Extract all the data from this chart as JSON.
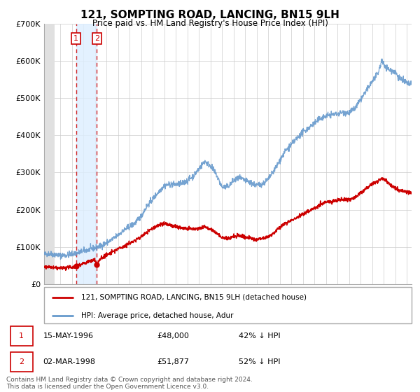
{
  "title": "121, SOMPTING ROAD, LANCING, BN15 9LH",
  "subtitle": "Price paid vs. HM Land Registry's House Price Index (HPI)",
  "legend_line1": "121, SOMPTING ROAD, LANCING, BN15 9LH (detached house)",
  "legend_line2": "HPI: Average price, detached house, Adur",
  "footer": "Contains HM Land Registry data © Crown copyright and database right 2024.\nThis data is licensed under the Open Government Licence v3.0.",
  "transactions": [
    {
      "label": "1",
      "date": "1996-05-15",
      "price": 48000,
      "note": "15-MAY-1996",
      "amount": "£48,000",
      "pct": "42% ↓ HPI"
    },
    {
      "label": "2",
      "date": "1998-03-02",
      "price": 51877,
      "note": "02-MAR-1998",
      "amount": "£51,877",
      "pct": "52% ↓ HPI"
    }
  ],
  "price_color": "#cc0000",
  "hpi_color": "#6699cc",
  "vline_color": "#cc0000",
  "highlight_bg": "#ddeeff",
  "ylim": [
    0,
    700000
  ],
  "yticks": [
    0,
    100000,
    200000,
    300000,
    400000,
    500000,
    600000,
    700000
  ],
  "xmin": 1993.6,
  "xmax": 2025.4,
  "hatch_end": 1994.5,
  "t1_year": 1996.37,
  "t2_year": 1998.17,
  "t1_price": 48000,
  "t2_price": 51877,
  "hpi_anchors": [
    [
      1993.6,
      80000
    ],
    [
      1994.0,
      82000
    ],
    [
      1994.5,
      80000
    ],
    [
      1995.0,
      77000
    ],
    [
      1995.5,
      78000
    ],
    [
      1996.0,
      81000
    ],
    [
      1996.5,
      84000
    ],
    [
      1997.0,
      89000
    ],
    [
      1997.5,
      93000
    ],
    [
      1998.0,
      97000
    ],
    [
      1998.5,
      103000
    ],
    [
      1999.0,
      111000
    ],
    [
      1999.5,
      120000
    ],
    [
      2000.0,
      132000
    ],
    [
      2000.5,
      145000
    ],
    [
      2001.0,
      155000
    ],
    [
      2001.5,
      165000
    ],
    [
      2002.0,
      183000
    ],
    [
      2002.5,
      210000
    ],
    [
      2003.0,
      228000
    ],
    [
      2003.5,
      248000
    ],
    [
      2004.0,
      265000
    ],
    [
      2004.5,
      268000
    ],
    [
      2005.0,
      268000
    ],
    [
      2005.5,
      270000
    ],
    [
      2006.0,
      278000
    ],
    [
      2006.5,
      290000
    ],
    [
      2007.0,
      310000
    ],
    [
      2007.5,
      330000
    ],
    [
      2008.0,
      318000
    ],
    [
      2008.5,
      295000
    ],
    [
      2009.0,
      260000
    ],
    [
      2009.5,
      262000
    ],
    [
      2010.0,
      278000
    ],
    [
      2010.5,
      285000
    ],
    [
      2011.0,
      278000
    ],
    [
      2011.5,
      272000
    ],
    [
      2012.0,
      265000
    ],
    [
      2012.5,
      270000
    ],
    [
      2013.0,
      282000
    ],
    [
      2013.5,
      305000
    ],
    [
      2014.0,
      333000
    ],
    [
      2014.5,
      358000
    ],
    [
      2015.0,
      375000
    ],
    [
      2015.5,
      392000
    ],
    [
      2016.0,
      408000
    ],
    [
      2016.5,
      420000
    ],
    [
      2017.0,
      432000
    ],
    [
      2017.5,
      445000
    ],
    [
      2018.0,
      452000
    ],
    [
      2018.5,
      455000
    ],
    [
      2019.0,
      458000
    ],
    [
      2019.5,
      462000
    ],
    [
      2020.0,
      460000
    ],
    [
      2020.5,
      472000
    ],
    [
      2021.0,
      495000
    ],
    [
      2021.5,
      520000
    ],
    [
      2022.0,
      545000
    ],
    [
      2022.5,
      565000
    ],
    [
      2022.8,
      600000
    ],
    [
      2023.0,
      590000
    ],
    [
      2023.5,
      575000
    ],
    [
      2024.0,
      570000
    ],
    [
      2024.3,
      555000
    ],
    [
      2024.6,
      548000
    ],
    [
      2025.0,
      540000
    ],
    [
      2025.4,
      535000
    ]
  ],
  "price_anchors": [
    [
      1993.6,
      46000
    ],
    [
      1994.0,
      46000
    ],
    [
      1994.5,
      44000
    ],
    [
      1995.0,
      43000
    ],
    [
      1995.5,
      44000
    ],
    [
      1996.0,
      46000
    ],
    [
      1996.37,
      48000
    ],
    [
      1996.5,
      50000
    ],
    [
      1997.0,
      56000
    ],
    [
      1997.5,
      61000
    ],
    [
      1998.0,
      66000
    ],
    [
      1998.17,
      51877
    ],
    [
      1998.5,
      70000
    ],
    [
      1999.0,
      78000
    ],
    [
      1999.5,
      86000
    ],
    [
      2000.0,
      95000
    ],
    [
      2000.5,
      102000
    ],
    [
      2001.0,
      110000
    ],
    [
      2001.5,
      118000
    ],
    [
      2002.0,
      128000
    ],
    [
      2002.5,
      140000
    ],
    [
      2003.0,
      150000
    ],
    [
      2003.5,
      158000
    ],
    [
      2004.0,
      163000
    ],
    [
      2004.5,
      158000
    ],
    [
      2005.0,
      155000
    ],
    [
      2005.5,
      152000
    ],
    [
      2006.0,
      148000
    ],
    [
      2006.5,
      148000
    ],
    [
      2007.0,
      150000
    ],
    [
      2007.5,
      155000
    ],
    [
      2008.0,
      148000
    ],
    [
      2008.5,
      138000
    ],
    [
      2009.0,
      125000
    ],
    [
      2009.5,
      122000
    ],
    [
      2010.0,
      128000
    ],
    [
      2010.5,
      130000
    ],
    [
      2011.0,
      127000
    ],
    [
      2011.5,
      123000
    ],
    [
      2012.0,
      120000
    ],
    [
      2012.5,
      122000
    ],
    [
      2013.0,
      128000
    ],
    [
      2013.5,
      138000
    ],
    [
      2014.0,
      152000
    ],
    [
      2014.5,
      163000
    ],
    [
      2015.0,
      172000
    ],
    [
      2015.5,
      180000
    ],
    [
      2016.0,
      188000
    ],
    [
      2016.5,
      196000
    ],
    [
      2017.0,
      205000
    ],
    [
      2017.5,
      214000
    ],
    [
      2018.0,
      220000
    ],
    [
      2018.5,
      222000
    ],
    [
      2019.0,
      226000
    ],
    [
      2019.5,
      228000
    ],
    [
      2020.0,
      228000
    ],
    [
      2020.5,
      233000
    ],
    [
      2021.0,
      245000
    ],
    [
      2021.5,
      258000
    ],
    [
      2022.0,
      270000
    ],
    [
      2022.5,
      278000
    ],
    [
      2022.8,
      285000
    ],
    [
      2023.0,
      282000
    ],
    [
      2023.3,
      275000
    ],
    [
      2023.6,
      265000
    ],
    [
      2024.0,
      258000
    ],
    [
      2024.3,
      252000
    ],
    [
      2024.6,
      250000
    ],
    [
      2025.0,
      248000
    ],
    [
      2025.4,
      245000
    ]
  ]
}
